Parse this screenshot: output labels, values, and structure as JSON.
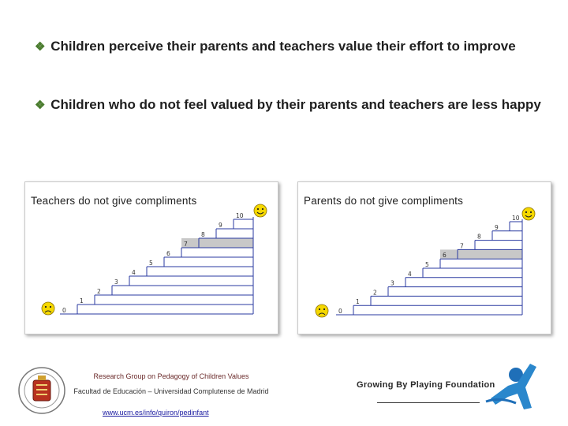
{
  "bullets": [
    {
      "marker": "❖",
      "text": "Children perceive their parents and teachers value their effort to improve"
    },
    {
      "marker": "❖",
      "text": "Children who do not feel valued by their parents and teachers are less happy"
    }
  ],
  "charts": [
    {
      "title": "Teachers do not give compliments",
      "steps": [
        "0",
        "1",
        "2",
        "3",
        "4",
        "5",
        "6",
        "7",
        "8",
        "9",
        "10"
      ],
      "highlighted_step": "7"
    },
    {
      "title": "Parents do not give compliments",
      "steps": [
        "0",
        "1",
        "2",
        "3",
        "4",
        "5",
        "6",
        "7",
        "8",
        "9",
        "10"
      ],
      "highlighted_step": "6"
    }
  ],
  "footer": {
    "research_group": "Research Group on Pedagogy of Children Values",
    "faculty": "Facultad de Educación – Universidad Complutense de Madrid",
    "url": "www.ucm.es/info/quiron/pedinfant",
    "foundation": "Growing By Playing Foundation"
  },
  "colors": {
    "bullet_marker": "#4a7c2e",
    "highlight": "#c8c8c8",
    "stairs": "#2a3aa0",
    "smiley": "#f5d800"
  },
  "icons": [
    "sad-face-icon",
    "happy-face-icon",
    "university-crest-icon",
    "foundation-logo-icon"
  ]
}
